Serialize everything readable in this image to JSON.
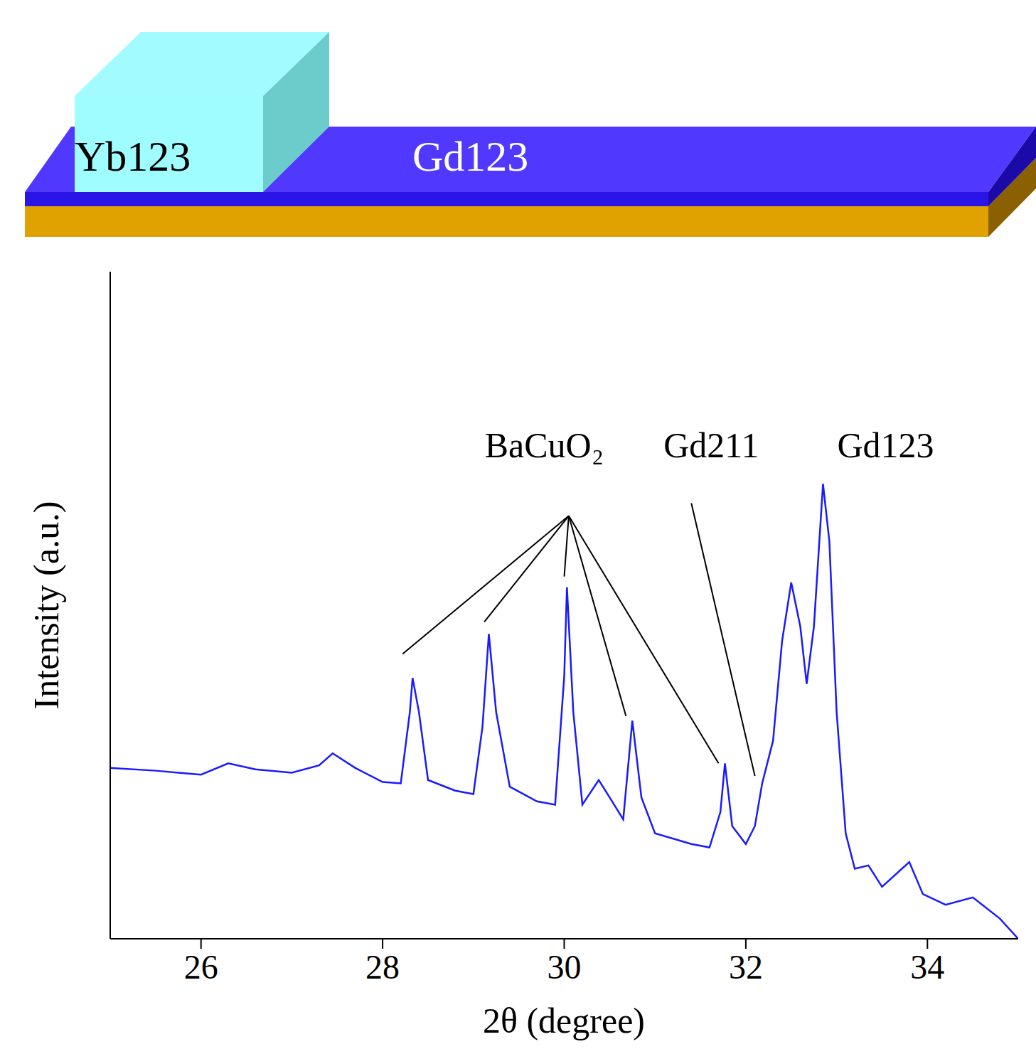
{
  "diagram": {
    "block_label": "Yb123",
    "film_label": "Gd123"
  },
  "chart_data": {
    "type": "line",
    "x_label": "2θ (degree)",
    "y_label": "Intensity (a.u.)",
    "x": [
      25.0,
      25.5,
      26.0,
      26.3,
      26.6,
      27.0,
      27.3,
      27.45,
      27.7,
      28.0,
      28.2,
      28.3,
      28.33,
      28.4,
      28.5,
      28.8,
      29.0,
      29.1,
      29.17,
      29.25,
      29.4,
      29.7,
      29.9,
      30.0,
      30.03,
      30.1,
      30.2,
      30.38,
      30.5,
      30.65,
      30.75,
      30.85,
      31.0,
      31.4,
      31.6,
      31.72,
      31.77,
      31.85,
      32.0,
      32.1,
      32.18,
      32.3,
      32.4,
      32.5,
      32.6,
      32.67,
      32.75,
      32.85,
      32.92,
      33.0,
      33.1,
      33.2,
      33.35,
      33.5,
      33.8,
      33.95,
      34.2,
      34.5,
      34.8,
      35.0
    ],
    "values": [
      2.56,
      2.52,
      2.46,
      2.63,
      2.54,
      2.49,
      2.6,
      2.78,
      2.56,
      2.35,
      2.33,
      3.4,
      3.91,
      3.4,
      2.38,
      2.22,
      2.17,
      3.18,
      4.57,
      3.4,
      2.28,
      2.06,
      2.01,
      3.93,
      5.27,
      3.4,
      2.01,
      2.38,
      2.12,
      1.79,
      3.27,
      2.12,
      1.58,
      1.42,
      1.37,
      1.9,
      2.63,
      1.69,
      1.42,
      1.69,
      2.33,
      2.97,
      4.47,
      5.34,
      4.68,
      3.82,
      4.68,
      6.82,
      5.96,
      3.4,
      1.58,
      1.05,
      1.1,
      0.78,
      1.15,
      0.67,
      0.51,
      0.62,
      0.3,
      0.0
    ],
    "color": "#1a1aff",
    "xlim": [
      25,
      35
    ],
    "xticks": [
      26,
      28,
      30,
      32,
      34
    ],
    "ylim": [
      0,
      10
    ],
    "yticks": [
      0,
      1,
      2,
      3,
      4,
      5,
      6,
      7,
      8,
      9,
      10
    ],
    "tick_labels": "x",
    "grid": false,
    "annotations": [
      {
        "text": "BaCuO₂",
        "x": 29.78,
        "y": 7.4,
        "from": [
          30.05,
          6.34
        ],
        "points_to": [
          [
            28.22,
            4.27
          ],
          [
            29.12,
            4.75
          ],
          [
            30.0,
            5.43
          ],
          [
            30.68,
            3.34
          ],
          [
            31.7,
            2.63
          ]
        ]
      },
      {
        "text": "Gd211",
        "x": 31.62,
        "y": 7.4,
        "from": [
          31.4,
          6.53
        ],
        "points_to": [
          [
            32.1,
            2.44
          ]
        ]
      },
      {
        "text": "Gd123",
        "x": 33.54,
        "y": 7.4,
        "from": null,
        "points_to": []
      }
    ]
  }
}
